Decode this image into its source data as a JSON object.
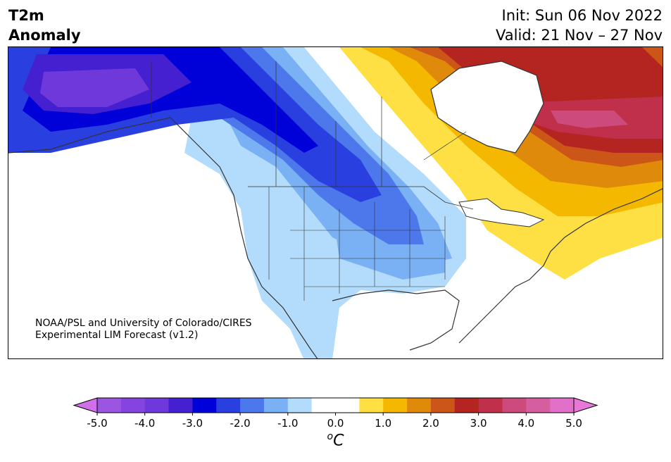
{
  "title": {
    "line1": "T2m",
    "line2": "Anomaly"
  },
  "init": {
    "line1": "Init: Sun 06 Nov 2022",
    "line2": "Valid: 21 Nov – 27 Nov"
  },
  "credit": {
    "line1": "NOAA/PSL and University of Colorado/CIRES",
    "line2": "Experimental LIM Forecast (v1.2)"
  },
  "colorbar": {
    "unit_base": "C",
    "unit_sup": "o",
    "ticks": [
      "-5.0",
      "-4.0",
      "-3.0",
      "-2.0",
      "-1.0",
      "0.0",
      "1.0",
      "2.0",
      "3.0",
      "4.0",
      "5.0"
    ],
    "tick_values": [
      -5,
      -4,
      -3,
      -2,
      -1,
      0,
      1,
      2,
      3,
      4,
      5
    ],
    "range": [
      -5,
      5
    ],
    "bins": [
      {
        "min": -5.0,
        "max": -4.5,
        "color": "#9c55e0"
      },
      {
        "min": -4.5,
        "max": -4.0,
        "color": "#8544df"
      },
      {
        "min": -4.0,
        "max": -3.5,
        "color": "#6f38db"
      },
      {
        "min": -3.5,
        "max": -3.0,
        "color": "#4520d0"
      },
      {
        "min": -3.0,
        "max": -2.5,
        "color": "#0000d8"
      },
      {
        "min": -2.5,
        "max": -2.0,
        "color": "#2a3fe0"
      },
      {
        "min": -2.0,
        "max": -1.5,
        "color": "#4c78ec"
      },
      {
        "min": -1.5,
        "max": -1.0,
        "color": "#7ab0f4"
      },
      {
        "min": -1.0,
        "max": -0.5,
        "color": "#b3dcfc"
      },
      {
        "min": -0.5,
        "max": 0.5,
        "color": "#ffffff"
      },
      {
        "min": 0.5,
        "max": 1.0,
        "color": "#ffe044"
      },
      {
        "min": 1.0,
        "max": 1.5,
        "color": "#f4b800"
      },
      {
        "min": 1.5,
        "max": 2.0,
        "color": "#e08a0c"
      },
      {
        "min": 2.0,
        "max": 2.5,
        "color": "#cc5518"
      },
      {
        "min": 2.5,
        "max": 3.0,
        "color": "#b42420"
      },
      {
        "min": 3.0,
        "max": 3.5,
        "color": "#c0304a"
      },
      {
        "min": 3.5,
        "max": 4.0,
        "color": "#cc4a7c"
      },
      {
        "min": 4.0,
        "max": 4.5,
        "color": "#d65ea0"
      },
      {
        "min": 4.5,
        "max": 5.0,
        "color": "#e070c8"
      }
    ],
    "under_color": "#d070e8",
    "over_color": "#e878d8"
  },
  "map": {
    "regions": [
      {
        "name": "western-us-cool",
        "anomaly": -1.0
      },
      {
        "name": "plains-cool",
        "anomaly": -1.5
      },
      {
        "name": "alberta-saskatchewan-cold",
        "anomaly": -2.5
      },
      {
        "name": "alaska-cold",
        "anomaly": -4.0
      },
      {
        "name": "eastern-canada-warm",
        "anomaly": 3.5
      },
      {
        "name": "hudson-bay-warm",
        "anomaly": 3.0
      },
      {
        "name": "northeast-us-warm",
        "anomaly": 1.0
      }
    ]
  }
}
